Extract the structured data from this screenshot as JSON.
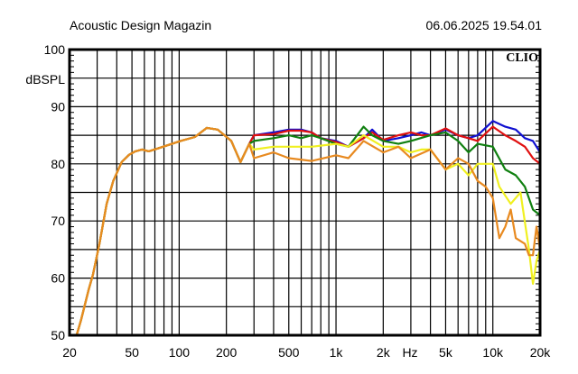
{
  "header": {
    "title": "Acoustic Design Magazin",
    "timestamp": "06.06.2025 19.54.01",
    "brand": "CLIO"
  },
  "chart_data": {
    "type": "line",
    "ylabel": "dBSPL",
    "xunit": "Hz",
    "xscale": "log",
    "xlim": [
      20,
      20000
    ],
    "ylim": [
      50,
      100
    ],
    "grid": true,
    "x_ticks": [
      {
        "v": 20,
        "label": "20"
      },
      {
        "v": 50,
        "label": "50"
      },
      {
        "v": 100,
        "label": "100"
      },
      {
        "v": 200,
        "label": "200"
      },
      {
        "v": 500,
        "label": "500"
      },
      {
        "v": 1000,
        "label": "1k"
      },
      {
        "v": 2000,
        "label": "2k"
      },
      {
        "v": 5000,
        "label": "5k"
      },
      {
        "v": 10000,
        "label": "10k"
      },
      {
        "v": 20000,
        "label": "20k"
      }
    ],
    "y_ticks": [
      {
        "v": 100,
        "label": "100"
      },
      {
        "v": 90,
        "label": "90"
      },
      {
        "v": 80,
        "label": "80"
      },
      {
        "v": 70,
        "label": "70"
      },
      {
        "v": 60,
        "label": "60"
      },
      {
        "v": 50,
        "label": "50"
      }
    ],
    "common_low": [
      [
        22.3,
        50.2
      ],
      [
        23.7,
        52.7
      ],
      [
        26.5,
        58
      ],
      [
        28.2,
        60.6
      ],
      [
        31,
        66
      ],
      [
        34.5,
        73
      ],
      [
        38,
        77
      ],
      [
        43,
        80.3
      ],
      [
        48,
        81.6
      ],
      [
        52.6,
        82.2
      ],
      [
        58,
        82.5
      ],
      [
        64,
        82.2
      ],
      [
        79,
        83
      ],
      [
        102,
        84
      ],
      [
        126,
        84.7
      ],
      [
        150,
        86.3
      ],
      [
        176,
        86
      ],
      [
        215,
        84
      ],
      [
        246,
        80.3
      ],
      [
        280,
        83.5
      ]
    ],
    "series": [
      {
        "color": "#1010d0",
        "points": [
          [
            300,
            85
          ],
          [
            400,
            85.5
          ],
          [
            500,
            86
          ],
          [
            600,
            86
          ],
          [
            700,
            85.5
          ],
          [
            800,
            84.5
          ],
          [
            1000,
            84
          ],
          [
            1200,
            83
          ],
          [
            1500,
            84.5
          ],
          [
            1700,
            86
          ],
          [
            2000,
            84
          ],
          [
            2500,
            84.5
          ],
          [
            3000,
            85
          ],
          [
            3500,
            85.5
          ],
          [
            4000,
            85
          ],
          [
            5000,
            86
          ],
          [
            6000,
            85
          ],
          [
            7000,
            84.5
          ],
          [
            8000,
            85
          ],
          [
            10000,
            87.5
          ],
          [
            12000,
            86.5
          ],
          [
            14000,
            86
          ],
          [
            16000,
            84.5
          ],
          [
            18000,
            84
          ],
          [
            20000,
            82
          ]
        ]
      },
      {
        "color": "#e01010",
        "points": [
          [
            300,
            85
          ],
          [
            400,
            85.2
          ],
          [
            500,
            85.8
          ],
          [
            600,
            85.8
          ],
          [
            700,
            85.5
          ],
          [
            800,
            84.5
          ],
          [
            1000,
            83.8
          ],
          [
            1200,
            83
          ],
          [
            1500,
            84.5
          ],
          [
            1700,
            85.5
          ],
          [
            2000,
            84.2
          ],
          [
            2500,
            85
          ],
          [
            3000,
            85.5
          ],
          [
            3500,
            85
          ],
          [
            4000,
            85
          ],
          [
            5000,
            86.2
          ],
          [
            6000,
            85
          ],
          [
            7000,
            84.5
          ],
          [
            8000,
            84
          ],
          [
            10000,
            86.5
          ],
          [
            12000,
            85
          ],
          [
            14000,
            84
          ],
          [
            16000,
            83
          ],
          [
            18000,
            81
          ],
          [
            20000,
            80
          ]
        ]
      },
      {
        "color": "#108010",
        "points": [
          [
            300,
            84
          ],
          [
            400,
            84.5
          ],
          [
            500,
            85
          ],
          [
            600,
            84.5
          ],
          [
            700,
            85
          ],
          [
            800,
            84.5
          ],
          [
            1000,
            83.5
          ],
          [
            1200,
            83
          ],
          [
            1500,
            86.5
          ],
          [
            1700,
            85
          ],
          [
            2000,
            84
          ],
          [
            2500,
            83.5
          ],
          [
            3000,
            84
          ],
          [
            4000,
            85
          ],
          [
            5000,
            85.5
          ],
          [
            6000,
            84
          ],
          [
            7000,
            82
          ],
          [
            8000,
            83.5
          ],
          [
            10000,
            83
          ],
          [
            12000,
            79
          ],
          [
            14000,
            78
          ],
          [
            16000,
            76
          ],
          [
            18000,
            72
          ],
          [
            20000,
            71
          ]
        ]
      },
      {
        "color": "#f0f020",
        "points": [
          [
            300,
            82.5
          ],
          [
            400,
            83
          ],
          [
            500,
            83
          ],
          [
            700,
            83
          ],
          [
            1000,
            83.5
          ],
          [
            1200,
            83
          ],
          [
            1500,
            85
          ],
          [
            2000,
            83
          ],
          [
            2500,
            83
          ],
          [
            3000,
            82
          ],
          [
            3500,
            82.5
          ],
          [
            4000,
            82.5
          ],
          [
            5000,
            79
          ],
          [
            6000,
            80
          ],
          [
            7000,
            78
          ],
          [
            8000,
            80
          ],
          [
            10000,
            80
          ],
          [
            11000,
            76
          ],
          [
            13000,
            73
          ],
          [
            15000,
            75
          ],
          [
            17000,
            65
          ],
          [
            18000,
            59
          ],
          [
            19000,
            63
          ],
          [
            20000,
            65
          ]
        ]
      },
      {
        "color": "#e88a20",
        "points": [
          [
            300,
            81
          ],
          [
            400,
            82
          ],
          [
            500,
            81
          ],
          [
            700,
            80.5
          ],
          [
            1000,
            81.5
          ],
          [
            1200,
            81
          ],
          [
            1500,
            84
          ],
          [
            2000,
            82
          ],
          [
            2500,
            83
          ],
          [
            3000,
            81
          ],
          [
            4000,
            82.5
          ],
          [
            5000,
            79
          ],
          [
            6000,
            81
          ],
          [
            7000,
            80
          ],
          [
            8000,
            77
          ],
          [
            9000,
            76
          ],
          [
            10000,
            74
          ],
          [
            11000,
            67
          ],
          [
            12000,
            69
          ],
          [
            13000,
            72
          ],
          [
            14000,
            67
          ],
          [
            16000,
            66
          ],
          [
            17000,
            64
          ],
          [
            18000,
            64
          ],
          [
            19000,
            69
          ],
          [
            20000,
            65
          ]
        ]
      }
    ]
  }
}
